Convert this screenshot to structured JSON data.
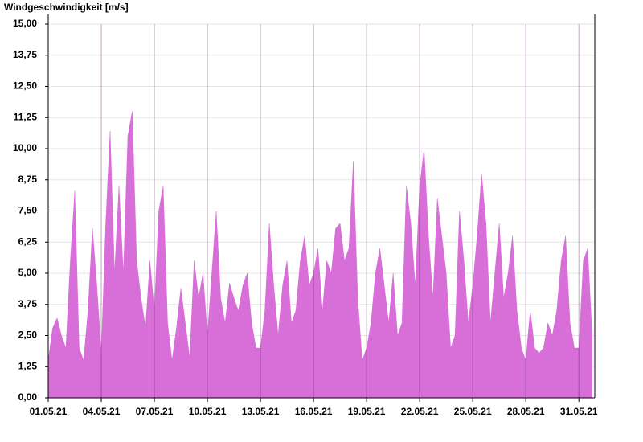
{
  "chart_data": {
    "type": "area",
    "title": "Windgeschwindigkeit [m/s]",
    "x": [
      1,
      1.25,
      1.5,
      1.75,
      2,
      2.25,
      2.5,
      2.75,
      3,
      3.25,
      3.5,
      3.75,
      4,
      4.25,
      4.5,
      4.75,
      5,
      5.25,
      5.5,
      5.75,
      6,
      6.25,
      6.5,
      6.75,
      7,
      7.25,
      7.5,
      7.75,
      8,
      8.25,
      8.5,
      8.75,
      9,
      9.25,
      9.5,
      9.75,
      10,
      10.25,
      10.5,
      10.75,
      11,
      11.25,
      11.5,
      11.75,
      12,
      12.25,
      12.5,
      12.75,
      13,
      13.25,
      13.5,
      13.75,
      14,
      14.25,
      14.5,
      14.75,
      15,
      15.25,
      15.5,
      15.75,
      16,
      16.25,
      16.5,
      16.75,
      17,
      17.25,
      17.5,
      17.75,
      18,
      18.25,
      18.5,
      18.75,
      19,
      19.25,
      19.5,
      19.75,
      20,
      20.25,
      20.5,
      20.75,
      21,
      21.25,
      21.5,
      21.75,
      22,
      22.25,
      22.5,
      22.75,
      23,
      23.25,
      23.5,
      23.75,
      24,
      24.25,
      24.5,
      24.75,
      25,
      25.25,
      25.5,
      25.75,
      26,
      26.25,
      26.5,
      26.75,
      27,
      27.25,
      27.5,
      27.75,
      28,
      28.25,
      28.5,
      28.75,
      29,
      29.25,
      29.5,
      29.75,
      30,
      30.25,
      30.5,
      30.75,
      31,
      31.25,
      31.5,
      31.75
    ],
    "series": [
      {
        "color": "#d86fd8",
        "values": [
          1.5,
          2.8,
          3.2,
          2.5,
          2.0,
          5.5,
          8.3,
          2.0,
          1.5,
          3.5,
          6.8,
          4.5,
          1.8,
          7.0,
          10.7,
          5.0,
          8.5,
          5.0,
          10.5,
          11.5,
          5.5,
          4.0,
          2.8,
          5.5,
          3.5,
          7.5,
          8.5,
          3.0,
          1.5,
          2.8,
          4.4,
          3.0,
          1.6,
          5.5,
          4.0,
          5.0,
          2.5,
          5.0,
          7.5,
          4.0,
          3.0,
          4.6,
          4.0,
          3.5,
          4.5,
          5.0,
          3.0,
          2.0,
          2.0,
          3.5,
          7.0,
          4.5,
          2.5,
          4.5,
          5.5,
          3.0,
          3.5,
          5.5,
          6.5,
          4.5,
          5.0,
          6.0,
          3.5,
          5.5,
          5.0,
          6.8,
          7.0,
          5.5,
          6.0,
          9.5,
          4.0,
          1.5,
          2.0,
          3.0,
          5.0,
          6.0,
          4.5,
          3.0,
          5.0,
          2.5,
          3.0,
          8.5,
          7.0,
          4.5,
          8.5,
          10.0,
          6.5,
          4.0,
          8.0,
          6.5,
          5.0,
          2.0,
          2.5,
          7.5,
          5.5,
          3.0,
          4.5,
          6.5,
          9.0,
          7.0,
          3.0,
          5.0,
          7.0,
          4.0,
          5.0,
          6.5,
          3.5,
          2.0,
          1.5,
          3.5,
          2.0,
          1.8,
          2.0,
          3.0,
          2.5,
          3.5,
          5.5,
          6.5,
          3.0,
          2.0,
          2.0,
          5.5,
          6.0,
          2.5
        ]
      }
    ],
    "xlim": [
      1,
      31.9
    ],
    "xticks": [
      {
        "value": 1,
        "label": "01.05.21"
      },
      {
        "value": 4,
        "label": "04.05.21"
      },
      {
        "value": 7,
        "label": "07.05.21"
      },
      {
        "value": 10,
        "label": "10.05.21"
      },
      {
        "value": 13,
        "label": "13.05.21"
      },
      {
        "value": 16,
        "label": "16.05.21"
      },
      {
        "value": 19,
        "label": "19.05.21"
      },
      {
        "value": 22,
        "label": "22.05.21"
      },
      {
        "value": 25,
        "label": "25.05.21"
      },
      {
        "value": 28,
        "label": "28.05.21"
      },
      {
        "value": 31,
        "label": "31.05.21"
      }
    ],
    "ylim": [
      0,
      15
    ],
    "yticks": [
      {
        "value": 0,
        "label": "0,00"
      },
      {
        "value": 1.25,
        "label": "1,25"
      },
      {
        "value": 2.5,
        "label": "2,50"
      },
      {
        "value": 3.75,
        "label": "3,75"
      },
      {
        "value": 5,
        "label": "5,00"
      },
      {
        "value": 6.25,
        "label": "6,25"
      },
      {
        "value": 7.5,
        "label": "7,50"
      },
      {
        "value": 8.75,
        "label": "8,75"
      },
      {
        "value": 10,
        "label": "10,00"
      },
      {
        "value": 11.25,
        "label": "11,25"
      },
      {
        "value": 12.5,
        "label": "12,50"
      },
      {
        "value": 13.75,
        "label": "13,75"
      },
      {
        "value": 15,
        "label": "15,00"
      }
    ],
    "grid": true
  }
}
